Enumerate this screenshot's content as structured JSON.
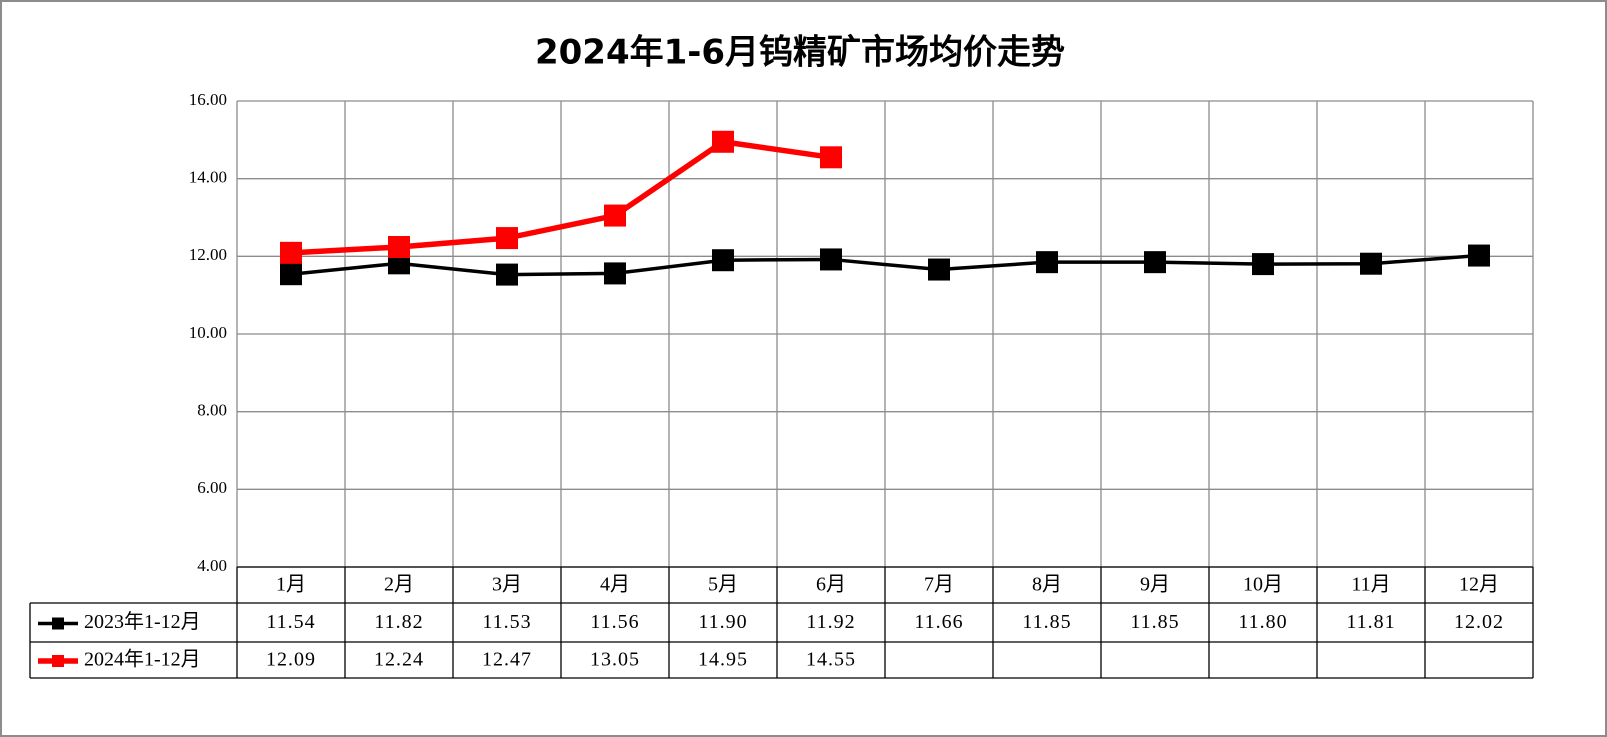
{
  "chart_data": {
    "type": "line",
    "title": "2024年1-6月钨精矿市场均价走势",
    "categories": [
      "1月",
      "2月",
      "3月",
      "4月",
      "5月",
      "6月",
      "7月",
      "8月",
      "9月",
      "10月",
      "11月",
      "12月"
    ],
    "series": [
      {
        "name": "2023年1-12月",
        "color": "#000000",
        "values": [
          11.54,
          11.82,
          11.53,
          11.56,
          11.9,
          11.92,
          11.66,
          11.85,
          11.85,
          11.8,
          11.81,
          12.02
        ],
        "value_labels": [
          "11.54",
          "11.82",
          "11.53",
          "11.56",
          "11.90",
          "11.92",
          "11.66",
          "11.85",
          "11.85",
          "11.80",
          "11.81",
          "12.02"
        ]
      },
      {
        "name": "2024年1-12月",
        "color": "#ff0000",
        "values": [
          12.09,
          12.24,
          12.47,
          13.05,
          14.95,
          14.55,
          null,
          null,
          null,
          null,
          null,
          null
        ],
        "value_labels": [
          "12.09",
          "12.24",
          "12.47",
          "13.05",
          "14.95",
          "14.55",
          null,
          null,
          null,
          null,
          null,
          null
        ]
      }
    ],
    "ylim": [
      4,
      16
    ],
    "yticks": [
      {
        "value": 4,
        "label": "4.00"
      },
      {
        "value": 6,
        "label": "6.00"
      },
      {
        "value": 8,
        "label": "8.00"
      },
      {
        "value": 10,
        "label": "10.00"
      },
      {
        "value": 12,
        "label": "12.00"
      },
      {
        "value": 14,
        "label": "14.00"
      },
      {
        "value": 16,
        "label": "16.00"
      }
    ],
    "grid": true
  }
}
